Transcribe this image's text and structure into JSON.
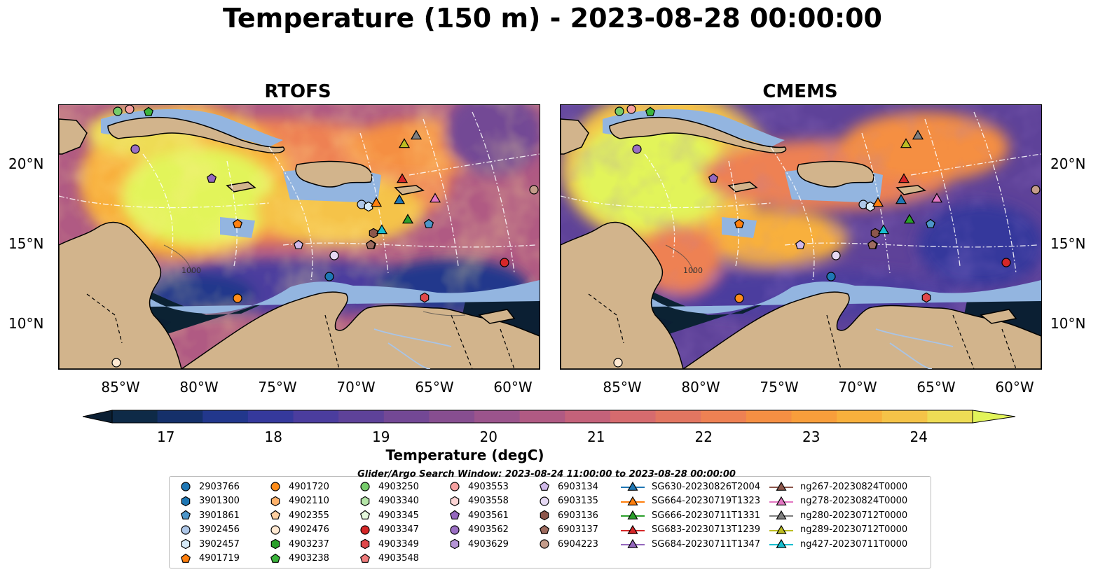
{
  "title": "Temperature (150 m) - 2023-08-28 00:00:00",
  "panels": [
    {
      "title": "RTOFS"
    },
    {
      "title": "CMEMS"
    }
  ],
  "map": {
    "extent_lon": [
      -89,
      -58
    ],
    "extent_lat": [
      7,
      24
    ],
    "lon_ticks": [
      "85°W",
      "80°W",
      "75°W",
      "70°W",
      "65°W",
      "60°W"
    ],
    "lat_ticks": [
      "20°N",
      "15°N",
      "10°N"
    ],
    "contour_labels": [
      "1000",
      "1000"
    ],
    "land_color": "#d2b48c",
    "shelf_color": "#93b5e0",
    "ocean_cold_color": "#0b2233"
  },
  "colorbar": {
    "label": "Temperature (degC)",
    "ticks": [
      "17",
      "18",
      "19",
      "20",
      "21",
      "22",
      "23",
      "24"
    ],
    "range": [
      16.5,
      24.5
    ],
    "extend": "both",
    "colors": [
      "#0b1f33",
      "#0e2a47",
      "#15306a",
      "#22378c",
      "#35399c",
      "#4b3d9e",
      "#5e4299",
      "#734895",
      "#874e90",
      "#9b548c",
      "#b05a83",
      "#c4627a",
      "#d66b6e",
      "#e27661",
      "#ee8153",
      "#f58f43",
      "#f89e3b",
      "#f8b03c",
      "#f5c348",
      "#eedc55",
      "#e2f45a"
    ]
  },
  "legend": {
    "caption": "Glider/Argo Search Window: 2023-08-24 11:00:00 to 2023-08-28 00:00:00",
    "columns": [
      [
        {
          "label": "2903766",
          "marker": "circle",
          "color": "#1f77b4"
        },
        {
          "label": "3901300",
          "marker": "hexagon",
          "color": "#1f77b4"
        },
        {
          "label": "3901861",
          "marker": "pentagon",
          "color": "#4d96c9"
        },
        {
          "label": "3902456",
          "marker": "circle",
          "color": "#aec7e8"
        },
        {
          "label": "3902457",
          "marker": "hexagon",
          "color": "#d6eaf8"
        },
        {
          "label": "4901719",
          "marker": "pentagon",
          "color": "#ff7f0e"
        }
      ],
      [
        {
          "label": "4901720",
          "marker": "circle",
          "color": "#ff8c1a"
        },
        {
          "label": "4902110",
          "marker": "hexagon",
          "color": "#ffb26b"
        },
        {
          "label": "4902355",
          "marker": "pentagon",
          "color": "#ffcfa0"
        },
        {
          "label": "4902476",
          "marker": "circle",
          "color": "#ffe9d2"
        },
        {
          "label": "4903237",
          "marker": "hexagon",
          "color": "#2ca02c"
        },
        {
          "label": "4903238",
          "marker": "pentagon",
          "color": "#3cb43c"
        }
      ],
      [
        {
          "label": "4903250",
          "marker": "circle",
          "color": "#76cc6b"
        },
        {
          "label": "4903340",
          "marker": "hexagon",
          "color": "#b5e5a8"
        },
        {
          "label": "4903345",
          "marker": "pentagon",
          "color": "#e4f7dc"
        },
        {
          "label": "4903347",
          "marker": "circle",
          "color": "#d62728"
        },
        {
          "label": "4903349",
          "marker": "hexagon",
          "color": "#e0484a"
        },
        {
          "label": "4903548",
          "marker": "pentagon",
          "color": "#f07c7c"
        }
      ],
      [
        {
          "label": "4903553",
          "marker": "circle",
          "color": "#f5a0a0"
        },
        {
          "label": "4903558",
          "marker": "hexagon",
          "color": "#fcd4d4"
        },
        {
          "label": "4903561",
          "marker": "pentagon",
          "color": "#9467bd"
        },
        {
          "label": "4903562",
          "marker": "circle",
          "color": "#9b6fc4"
        },
        {
          "label": "4903629",
          "marker": "hexagon",
          "color": "#b595d6"
        }
      ],
      [
        {
          "label": "6903134",
          "marker": "pentagon",
          "color": "#cfb8e8"
        },
        {
          "label": "6903135",
          "marker": "circle",
          "color": "#e5d8f3"
        },
        {
          "label": "6903136",
          "marker": "hexagon",
          "color": "#8c564b"
        },
        {
          "label": "6903137",
          "marker": "pentagon",
          "color": "#9e6b5f"
        },
        {
          "label": "6904223",
          "marker": "circle",
          "color": "#c49c8a"
        }
      ],
      [
        {
          "label": "SG630-20230826T2004",
          "marker": "triangle",
          "color": "#1f77b4"
        },
        {
          "label": "SG664-20230719T1323",
          "marker": "triangle",
          "color": "#ff7f0e"
        },
        {
          "label": "SG666-20230711T1331",
          "marker": "triangle",
          "color": "#2ca02c"
        },
        {
          "label": "SG683-20230713T1239",
          "marker": "triangle",
          "color": "#d62728"
        },
        {
          "label": "SG684-20230711T1347",
          "marker": "triangle",
          "color": "#9467bd"
        }
      ],
      [
        {
          "label": "ng267-20230824T0000",
          "marker": "triangle",
          "color": "#8c564b"
        },
        {
          "label": "ng278-20230824T0000",
          "marker": "triangle",
          "color": "#e377c2"
        },
        {
          "label": "ng280-20230712T0000",
          "marker": "triangle",
          "color": "#7f7f7f"
        },
        {
          "label": "ng289-20230712T0000",
          "marker": "triangle",
          "color": "#bcbd22"
        },
        {
          "label": "ng427-20230711T0000",
          "marker": "triangle",
          "color": "#17becf"
        }
      ]
    ]
  }
}
